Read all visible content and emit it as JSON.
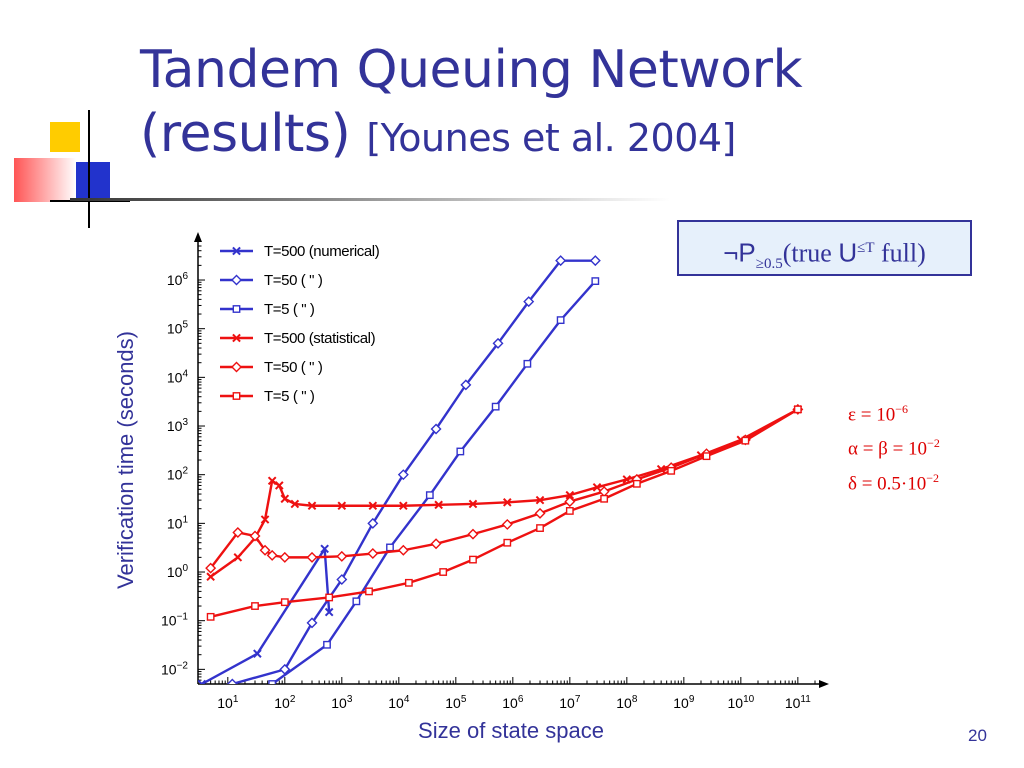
{
  "slide": {
    "title_line1": "Tandem Queuing Network",
    "title_line2": "(results)",
    "title_citation": "[Younes et al. 2004]",
    "page_number": "20"
  },
  "formula": {
    "neg_p": "¬P",
    "sub": "≥0.5",
    "open": "(true ",
    "u": "U",
    "sup": "≤T",
    "close": " full)"
  },
  "params": {
    "epsilon": "ε = 10",
    "epsilon_exp": "−6",
    "alpha_beta": "α = β = 10",
    "alpha_beta_exp": "−2",
    "delta": "δ = 0.5·10",
    "delta_exp": "−2"
  },
  "colors": {
    "title": "#333399",
    "numerical_series": "#3333cc",
    "statistical_series": "#ee1111",
    "box_fill": "#e6f0fb"
  },
  "chart_data": {
    "type": "line",
    "title": "",
    "xlabel": "Size of state space",
    "ylabel": "Verification time (seconds)",
    "x_scale": "log",
    "y_scale": "log",
    "xlim": [
      3,
      200000000000
    ],
    "ylim": [
      0.005,
      5000000
    ],
    "x_ticks": [
      {
        "value": 10,
        "base": "10",
        "exp": "1"
      },
      {
        "value": 100,
        "base": "10",
        "exp": "2"
      },
      {
        "value": 1000,
        "base": "10",
        "exp": "3"
      },
      {
        "value": 10000,
        "base": "10",
        "exp": "4"
      },
      {
        "value": 100000,
        "base": "10",
        "exp": "5"
      },
      {
        "value": 1000000,
        "base": "10",
        "exp": "6"
      },
      {
        "value": 10000000,
        "base": "10",
        "exp": "7"
      },
      {
        "value": 100000000,
        "base": "10",
        "exp": "8"
      },
      {
        "value": 1000000000,
        "base": "10",
        "exp": "9"
      },
      {
        "value": 10000000000,
        "base": "10",
        "exp": "10"
      },
      {
        "value": 100000000000,
        "base": "10",
        "exp": "11"
      }
    ],
    "y_ticks": [
      {
        "value": 0.01,
        "base": "10",
        "exp": "−2"
      },
      {
        "value": 0.1,
        "base": "10",
        "exp": "−1"
      },
      {
        "value": 1,
        "base": "10",
        "exp": "0"
      },
      {
        "value": 10,
        "base": "10",
        "exp": "1"
      },
      {
        "value": 100,
        "base": "10",
        "exp": "2"
      },
      {
        "value": 1000,
        "base": "10",
        "exp": "3"
      },
      {
        "value": 10000,
        "base": "10",
        "exp": "4"
      },
      {
        "value": 100000,
        "base": "10",
        "exp": "5"
      },
      {
        "value": 1000000,
        "base": "10",
        "exp": "6"
      }
    ],
    "grid": false,
    "legend_position": "top-left",
    "series": [
      {
        "name": "T=500 (numerical)",
        "group": "numerical",
        "marker": "x",
        "x": [
          3.5,
          33,
          500,
          600
        ],
        "y": [
          0.005,
          0.021,
          3.0,
          0.15
        ]
      },
      {
        "name": "T=50 ( \" )",
        "group": "numerical",
        "marker": "diamond",
        "x": [
          12,
          100,
          300,
          1000,
          3500,
          12000,
          45000,
          150000,
          550000,
          1900000,
          6900000,
          28000000
        ],
        "y": [
          0.005,
          0.01,
          0.09,
          0.7,
          10,
          100,
          870,
          7000,
          50000,
          360000,
          2500000,
          2500000
        ],
        "note_x": [
          60,
          100,
          300,
          1000,
          3500,
          12000,
          45000,
          150000,
          550000,
          1900000,
          6900000,
          28000000
        ]
      },
      {
        "name": "T=5 ( \" )",
        "group": "numerical",
        "marker": "square",
        "x": [
          60,
          550,
          1800,
          7000,
          35000,
          120000,
          500000,
          1800000,
          6900000,
          28000000
        ],
        "y": [
          0.005,
          0.032,
          0.25,
          3.2,
          38,
          300,
          2500,
          19000,
          150000,
          950000
        ]
      },
      {
        "name": "T=500 (statistical)",
        "group": "statistical",
        "marker": "x",
        "x": [
          5,
          15,
          30,
          45,
          60,
          80,
          100,
          150,
          300,
          1000,
          3500,
          12000,
          50000,
          200000,
          800000,
          3000000,
          10000000,
          30000000,
          100000000,
          400000000,
          2000000000,
          10000000000,
          100000000000
        ],
        "y": [
          0.8,
          2.0,
          5.0,
          12,
          75,
          60,
          32,
          25,
          23,
          23,
          23,
          23,
          24,
          25,
          27,
          30,
          38,
          55,
          80,
          130,
          250,
          520,
          2200
        ]
      },
      {
        "name": "T=50 ( \" )",
        "group": "statistical",
        "marker": "diamond",
        "x": [
          5,
          15,
          30,
          45,
          60,
          100,
          300,
          1000,
          3500,
          12000,
          45000,
          200000,
          800000,
          3000000,
          10000000,
          40000000,
          150000000,
          600000000,
          2500000000,
          12000000000,
          100000000000
        ],
        "y": [
          1.2,
          6.5,
          5.5,
          2.8,
          2.2,
          2.0,
          2.0,
          2.1,
          2.4,
          2.8,
          3.8,
          6.0,
          9.5,
          16,
          28,
          45,
          80,
          140,
          270,
          520,
          2200
        ]
      },
      {
        "name": "T=5 ( \" )",
        "group": "statistical",
        "marker": "square",
        "x": [
          5,
          30,
          100,
          600,
          3000,
          15000,
          60000,
          200000,
          800000,
          3000000,
          10000000,
          40000000,
          150000000,
          600000000,
          2500000000,
          12000000000,
          100000000000
        ],
        "y": [
          0.12,
          0.2,
          0.24,
          0.3,
          0.4,
          0.6,
          1.0,
          1.8,
          4.0,
          8.0,
          18,
          32,
          65,
          120,
          240,
          500,
          2200
        ]
      }
    ]
  }
}
